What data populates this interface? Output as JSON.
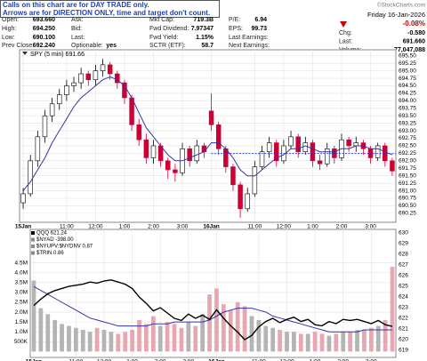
{
  "header": {
    "note": [
      "Calls on this chart are for DAY TRADE only.",
      "Arrows are for DIRECTION ONLY, time and target don't count."
    ],
    "copyright": "©StockCharts.com"
  },
  "quote": {
    "rows": [
      [
        [
          "Open:",
          "693.660"
        ],
        [
          "Ask:"
        ],
        [
          "Mkt Cap:",
          "719.3B"
        ],
        [
          "P/E:",
          "6.94"
        ]
      ],
      [
        [
          "High:",
          "694.250"
        ],
        [
          "Bid:"
        ],
        [
          "Fwd Dividend:",
          "7.97347"
        ],
        [
          "EPS:",
          "99.73"
        ]
      ],
      [
        [
          "Low:",
          "690.100"
        ],
        [
          "Last:"
        ],
        [
          "Fwd Yield:",
          "1.15%"
        ],
        [
          "Last Earnings:"
        ]
      ],
      [
        [
          "Prev Close:",
          "692.240"
        ],
        [
          "Optionable:",
          "yes"
        ],
        [
          "SCTR (ETF):",
          "58.7"
        ],
        [
          "Next Earnings:"
        ]
      ]
    ],
    "date": "Friday 16-Jan-2026",
    "change_pct": "-0.08%",
    "side_rows": [
      [
        "Chg:",
        "-0.580"
      ],
      [
        "Last:",
        "691.660"
      ],
      [
        "Volume:",
        "77,047,088"
      ]
    ]
  },
  "chart_data": [
    {
      "type": "candlestick",
      "legend": "SPY (5 min) 691.66",
      "open": [
        690.6,
        690.9,
        692.0,
        692.8,
        693.5,
        693.9,
        694.2,
        694.5,
        694.6,
        694.9,
        694.7,
        695.0,
        695.2,
        694.9,
        694.6,
        694.1,
        693.2,
        692.7,
        692.1,
        692.5,
        692.0,
        691.7,
        691.6,
        692.4,
        692.0,
        692.5,
        693.66,
        693.2,
        692.4,
        691.8,
        691.2,
        690.4,
        690.9,
        691.8,
        692.3,
        692.6,
        692.0,
        692.5,
        692.8,
        692.3,
        692.6,
        692.0,
        691.9,
        692.4,
        692.1,
        692.7,
        692.5,
        692.6,
        692.4,
        692.1,
        692.5,
        692.0
      ],
      "high": [
        691.1,
        692.2,
        693.0,
        693.7,
        694.1,
        694.4,
        694.7,
        694.8,
        695.1,
        695.0,
        695.2,
        695.4,
        695.3,
        695.0,
        694.7,
        694.2,
        693.4,
        692.9,
        692.7,
        692.6,
        692.1,
        691.9,
        692.6,
        692.5,
        692.7,
        692.6,
        694.25,
        693.3,
        692.5,
        691.9,
        691.3,
        691.1,
        692.0,
        692.5,
        692.8,
        692.7,
        692.7,
        693.0,
        692.9,
        692.8,
        692.7,
        692.2,
        692.6,
        692.5,
        692.9,
        692.8,
        692.8,
        692.7,
        692.5,
        692.6,
        692.6,
        692.1
      ],
      "low": [
        690.4,
        690.8,
        691.8,
        692.6,
        693.3,
        693.7,
        694.0,
        694.3,
        694.4,
        694.5,
        694.5,
        694.8,
        694.7,
        694.4,
        693.9,
        693.0,
        692.5,
        691.9,
        691.9,
        691.8,
        691.4,
        691.3,
        691.5,
        691.8,
        691.9,
        692.1,
        693.0,
        692.2,
        691.6,
        691.0,
        690.1,
        690.3,
        690.8,
        691.7,
        692.1,
        691.8,
        691.9,
        692.4,
        692.1,
        692.2,
        691.8,
        691.7,
        691.8,
        691.9,
        692.0,
        692.3,
        692.3,
        692.2,
        691.9,
        692.0,
        691.8,
        691.5
      ],
      "close": [
        690.9,
        692.0,
        692.8,
        693.5,
        693.9,
        694.2,
        694.5,
        694.6,
        694.9,
        694.7,
        695.0,
        695.2,
        694.9,
        694.6,
        694.1,
        693.2,
        692.7,
        692.1,
        692.5,
        692.0,
        691.7,
        691.6,
        692.4,
        692.0,
        692.5,
        692.3,
        693.2,
        692.4,
        691.8,
        691.2,
        690.4,
        690.9,
        691.8,
        692.3,
        692.6,
        692.0,
        692.5,
        692.8,
        692.3,
        692.6,
        692.0,
        691.9,
        692.4,
        692.1,
        692.7,
        692.5,
        692.6,
        692.4,
        692.1,
        692.5,
        692.0,
        691.66
      ],
      "up_color": "#000000",
      "down_color": "#cc0033",
      "ma": {
        "color": "#3333aa",
        "values": [
          691.0,
          691.3,
          691.7,
          692.1,
          692.6,
          693.0,
          693.4,
          693.8,
          694.1,
          694.3,
          694.5,
          694.7,
          694.8,
          694.7,
          694.5,
          694.1,
          693.6,
          693.1,
          692.8,
          692.5,
          692.2,
          692.0,
          692.0,
          692.1,
          692.2,
          692.3,
          692.6,
          692.6,
          692.4,
          692.1,
          691.7,
          691.5,
          691.5,
          691.7,
          691.9,
          692.1,
          692.2,
          692.4,
          692.4,
          692.5,
          692.4,
          692.3,
          692.3,
          692.3,
          692.4,
          692.4,
          692.5,
          692.5,
          692.4,
          692.4,
          692.3,
          692.2
        ]
      },
      "prev_close_color": "#2233cc",
      "xlim": [
        -0.5,
        51.5
      ],
      "xticks": [
        {
          "value": 0,
          "label": "15Jan"
        },
        {
          "value": 6,
          "label": "11:00"
        },
        {
          "value": 10,
          "label": "12:00"
        },
        {
          "value": 14,
          "label": "1:00"
        },
        {
          "value": 18,
          "label": "2:00"
        },
        {
          "value": 22,
          "label": "3:00"
        },
        {
          "value": 26,
          "label": "16Jan"
        },
        {
          "value": 32,
          "label": "11:00"
        },
        {
          "value": 36,
          "label": "12:00"
        },
        {
          "value": 40,
          "label": "1:00"
        },
        {
          "value": 44,
          "label": "2:00"
        },
        {
          "value": 48,
          "label": "3:00"
        }
      ],
      "ylim": [
        689.95,
        695.7
      ],
      "yticks": [
        {
          "value": 695.5,
          "label": "695.50"
        },
        695.25,
        {
          "value": 695.0,
          "label": "695.00"
        },
        694.75,
        {
          "value": 694.5,
          "label": "694.50"
        },
        694.25,
        {
          "value": 694.0,
          "label": "694.00"
        },
        693.75,
        {
          "value": 693.5,
          "label": "693.50"
        },
        693.25,
        {
          "value": 693.0,
          "label": "693.00"
        },
        692.75,
        {
          "value": 692.5,
          "label": "692.50"
        },
        692.25,
        {
          "value": 692.0,
          "label": "692.00"
        },
        691.75,
        {
          "value": 691.5,
          "label": "691.50"
        },
        691.25,
        {
          "value": 691.0,
          "label": "691.00"
        },
        690.75,
        {
          "value": 690.5,
          "label": "690.50"
        },
        690.25
      ],
      "grid": true
    },
    {
      "type": "volume",
      "legend": [
        "QQQ 621.24",
        "$NYAD -398.00",
        "$NYUPV:$NYDNV 0.87",
        "$TRIN 0.86"
      ],
      "volume": {
        "up_color": "#b4b4b4",
        "down_color": "#e8a7b0",
        "values": [
          3600000,
          2200000,
          1900000,
          1600000,
          1400000,
          1300000,
          1200000,
          1100000,
          1000000,
          1200000,
          1100000,
          1000000,
          900000,
          1000000,
          1100000,
          1600000,
          1400000,
          1800000,
          1300000,
          1500000,
          1400000,
          1200000,
          1500000,
          1300000,
          1900000,
          2900000,
          3200000,
          2400000,
          2100000,
          2500000,
          2300000,
          1800000,
          1600000,
          1300000,
          1200000,
          1100000,
          1000000,
          1000000,
          900000,
          900000,
          1000000,
          900000,
          800000,
          900000,
          1000000,
          1000000,
          1100000,
          1100000,
          1200000,
          1300000,
          1600000,
          4300000
        ]
      },
      "volume_ma": {
        "color": "#3333aa",
        "values": [
          3300000,
          3100000,
          2900000,
          2700000,
          2500000,
          2300000,
          2100000,
          1900000,
          1700000,
          1600000,
          1500000,
          1400000,
          1300000,
          1300000,
          1300000,
          1300000,
          1300000,
          1400000,
          1400000,
          1400000,
          1500000,
          1500000,
          1500000,
          1500000,
          1500000,
          1600000,
          1800000,
          2000000,
          2100000,
          2200000,
          2200000,
          2200000,
          2100000,
          2000000,
          1800000,
          1700000,
          1600000,
          1500000,
          1400000,
          1300000,
          1200000,
          1100000,
          1000000,
          1000000,
          1000000,
          1000000,
          1000000,
          1100000,
          1100000,
          1100000,
          1100000,
          1100000
        ]
      },
      "qqq": {
        "color": "#000000",
        "axis": "y2",
        "values": [
          623.2,
          623.8,
          624.3,
          624.6,
          624.8,
          625.0,
          625.1,
          625.2,
          625.4,
          625.3,
          625.5,
          625.6,
          625.4,
          625.2,
          624.8,
          624.0,
          623.4,
          622.7,
          623.0,
          622.5,
          622.0,
          621.8,
          622.4,
          622.0,
          622.3,
          621.9,
          622.8,
          622.0,
          621.3,
          620.7,
          620.0,
          620.4,
          621.2,
          621.7,
          622.0,
          621.6,
          621.9,
          622.1,
          621.7,
          621.9,
          621.4,
          621.3,
          621.7,
          621.5,
          621.9,
          621.8,
          621.9,
          621.7,
          621.5,
          621.8,
          621.4,
          621.24
        ]
      },
      "xlim": [
        -0.5,
        51.5
      ],
      "xticks": [
        {
          "value": 0,
          "label": "15Jan"
        },
        {
          "value": 6,
          "label": "11:00"
        },
        {
          "value": 10,
          "label": "12:00"
        },
        {
          "value": 14,
          "label": "1:00"
        },
        {
          "value": 18,
          "label": "2:00"
        },
        {
          "value": 22,
          "label": "3:00"
        },
        {
          "value": 26,
          "label": "16Jan"
        },
        {
          "value": 32,
          "label": "11:00"
        },
        {
          "value": 36,
          "label": "12:00"
        },
        {
          "value": 40,
          "label": "1:00"
        },
        {
          "value": 44,
          "label": "2:00"
        },
        {
          "value": 48,
          "label": "3:00"
        }
      ],
      "ylim": [
        -300000,
        6200000
      ],
      "yticks": [
        {
          "value": 4500000,
          "label": "4.5M"
        },
        {
          "value": 4000000,
          "label": "4.0M"
        },
        {
          "value": 3500000,
          "label": "3.5M"
        },
        {
          "value": 3000000,
          "label": "3.0M"
        },
        {
          "value": 2500000,
          "label": "2.5M"
        },
        {
          "value": 2000000,
          "label": "2.0M"
        },
        {
          "value": 1500000,
          "label": "1.5M"
        },
        {
          "value": 1000000,
          "label": "1.0M"
        },
        {
          "value": 500000,
          "label": "500K"
        }
      ],
      "y2lim": [
        618.33,
        630.33
      ],
      "y2ticks": [
        630,
        629,
        628,
        627,
        626,
        625,
        624,
        623,
        622,
        621,
        620,
        619
      ],
      "grid": true
    }
  ]
}
